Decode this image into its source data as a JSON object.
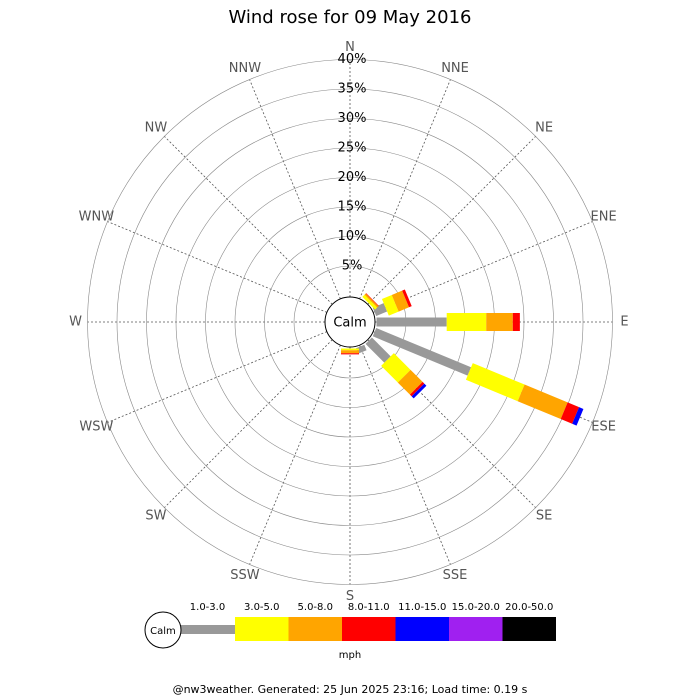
{
  "chart_data": {
    "type": "windrose",
    "title": "Wind rose for 09 May 2016",
    "directions": [
      "N",
      "NNE",
      "NE",
      "ENE",
      "E",
      "ESE",
      "SE",
      "SSE",
      "S",
      "SSW",
      "SW",
      "WSW",
      "W",
      "WNW",
      "NW",
      "NNW"
    ],
    "series": [
      {
        "name": "1.0-3.0",
        "color": "#999999",
        "values": [
          0,
          0,
          0,
          2,
          11.9,
          17.4,
          4.5,
          1,
          0,
          0,
          0,
          0,
          0,
          0,
          0,
          0
        ]
      },
      {
        "name": "3.0-5.0",
        "color": "#ffff00",
        "values": [
          0,
          0,
          0.5,
          1.8,
          6.7,
          9.5,
          4,
          0,
          0.3,
          0,
          0,
          0,
          0,
          0,
          0,
          0
        ]
      },
      {
        "name": "5.0-8.0",
        "color": "#ffa500",
        "values": [
          0,
          0,
          0.3,
          1.9,
          4.5,
          7.9,
          2.9,
          0,
          0.5,
          0,
          0,
          0,
          0,
          0,
          0,
          0
        ]
      },
      {
        "name": "8.0-11.0",
        "color": "#ff0000",
        "values": [
          0,
          0,
          0.1,
          0.5,
          1.2,
          2.1,
          0.4,
          0,
          0.2,
          0,
          0,
          0,
          0,
          0,
          0,
          0
        ]
      },
      {
        "name": "11.0-15.0",
        "color": "#0000ff",
        "values": [
          0,
          0,
          0,
          0,
          0,
          0.8,
          0.5,
          0,
          0,
          0,
          0,
          0,
          0,
          0,
          0,
          0
        ]
      },
      {
        "name": "15.0-20.0",
        "color": "#a020f0",
        "values": [
          0,
          0,
          0,
          0,
          0,
          0,
          0,
          0,
          0,
          0,
          0,
          0,
          0,
          0,
          0,
          0
        ]
      },
      {
        "name": "20.0-50.0",
        "color": "#000000",
        "values": [
          0,
          0,
          0,
          0,
          0,
          0,
          0,
          0,
          0,
          0,
          0,
          0,
          0,
          0,
          0,
          0
        ]
      }
    ],
    "rlim": [
      0,
      40
    ],
    "rticks": [
      {
        "value": 5,
        "label": "5%"
      },
      {
        "value": 10,
        "label": "10%"
      },
      {
        "value": 15,
        "label": "15%"
      },
      {
        "value": 20,
        "label": "20%"
      },
      {
        "value": 25,
        "label": "25%"
      },
      {
        "value": 30,
        "label": "30%"
      },
      {
        "value": 35,
        "label": "35%"
      },
      {
        "value": 40,
        "label": "40%"
      }
    ],
    "calm_label": "Calm",
    "units": "mph",
    "footer": "@nw3weather. Generated: 25 Jun 2025 23:16; Load time: 0.19 s"
  }
}
